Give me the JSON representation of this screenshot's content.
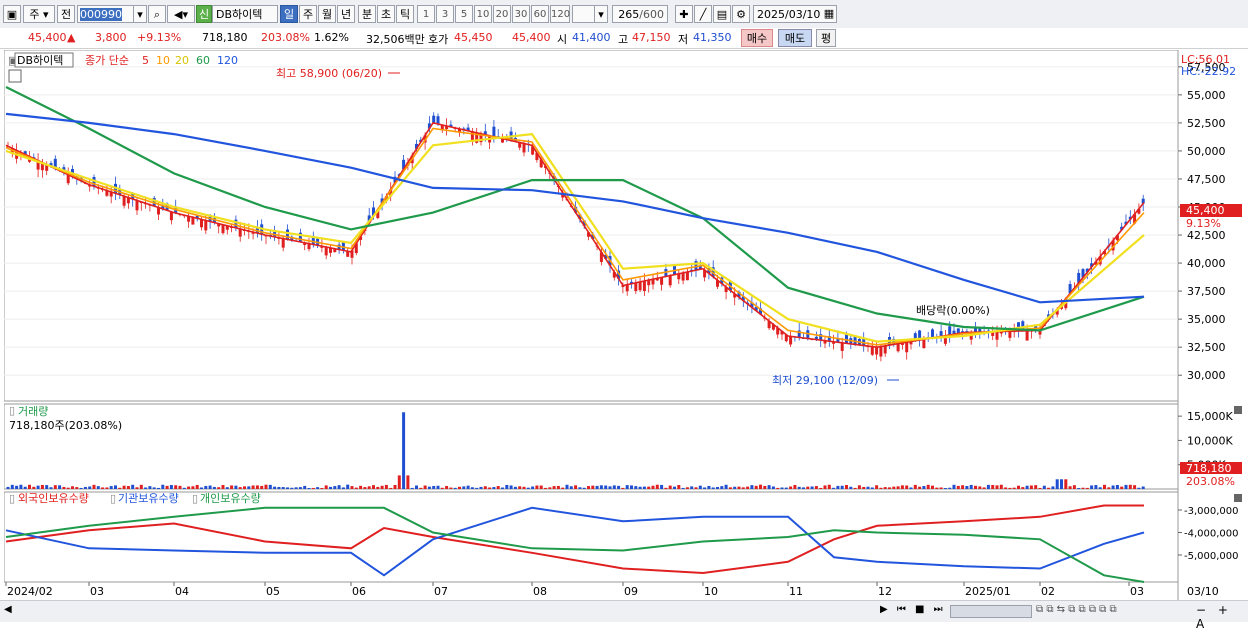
{
  "toolbar": {
    "tab_stock": "주",
    "tab_prev": "전",
    "code": "000990",
    "badge": "신",
    "name": "DB하이텍",
    "periods": [
      "일",
      "주",
      "월",
      "년",
      "분",
      "초",
      "틱"
    ],
    "selected_period": "일",
    "intervals": [
      "1",
      "3",
      "5",
      "10",
      "20",
      "30",
      "60",
      "120"
    ],
    "count": "265",
    "total": "/600",
    "date": "2025/03/10"
  },
  "info": {
    "price": "45,400",
    "arrow": "▲",
    "change": "3,800",
    "change_pct": "+9.13%",
    "volume": "718,180",
    "vol_ratio": "203.08%",
    "turnover": "1.62%",
    "amount": "32,506백만",
    "ask_label": "호가",
    "ask": "45,450",
    "bid": "45,400",
    "open_label": "시",
    "open": "41,400",
    "high_label": "고",
    "high": "47,150",
    "low_label": "저",
    "low": "41,350",
    "buy": "매수",
    "sell": "매도",
    "eval": "평"
  },
  "price_panel": {
    "legend_name": "DB하이텍",
    "legend_series": "종가 단순",
    "ma_periods": [
      "5",
      "10",
      "20",
      "60",
      "120"
    ],
    "ma_colors": [
      "#e02020",
      "#ff9900",
      "#f0e020",
      "#1e9a4a",
      "#2255dd"
    ],
    "lc": "LC:56.01",
    "hc": "HC:-22.92",
    "y_ticks": [
      "57,500",
      "55,000",
      "52,500",
      "50,000",
      "47,500",
      "45,000",
      "42,500",
      "40,000",
      "37,500",
      "35,000",
      "32,500",
      "30,000"
    ],
    "current_label": "45,400",
    "current_pct": "9.13%",
    "high_annotation": "최고 58,900 (06/20)",
    "low_annotation": "최저 29,100 (12/09)",
    "dividend_annotation": "배당락(0.00%)"
  },
  "volume_panel": {
    "title": "거래량",
    "value_text": "718,180주(203.08%)",
    "y_ticks": [
      "15,000K",
      "10,000K",
      "5,000K"
    ],
    "current_label": "718,180",
    "current_pct": "203.08%"
  },
  "holding_panel": {
    "legend": [
      "외국인보유수량",
      "기관보유수량",
      "개인보유수량"
    ],
    "legend_colors": [
      "#e02020",
      "#2255dd",
      "#1e9a4a"
    ],
    "y_ticks": [
      "-3,000,000",
      "-4,000,000",
      "-5,000,000"
    ]
  },
  "x_axis": {
    "labels": [
      "2024/02",
      "03",
      "04",
      "05",
      "06",
      "07",
      "08",
      "09",
      "10",
      "11",
      "12",
      "2025/01",
      "02",
      "03",
      "03/10"
    ]
  },
  "chart_data": {
    "type": "line",
    "x": [
      "2024/02",
      "03",
      "04",
      "05",
      "06",
      "07",
      "08",
      "09",
      "10",
      "11",
      "12",
      "2025/01",
      "02",
      "03"
    ],
    "series": [
      {
        "name": "5",
        "values": [
          50500,
          47000,
          44500,
          42500,
          41000,
          52500,
          50500,
          38000,
          39500,
          33500,
          32500,
          33800,
          34000,
          45400
        ]
      },
      {
        "name": "10",
        "values": [
          50300,
          47200,
          44800,
          42700,
          41300,
          52000,
          50800,
          38500,
          39800,
          34000,
          32700,
          33700,
          34200,
          44500
        ]
      },
      {
        "name": "20",
        "values": [
          50000,
          47500,
          45000,
          43000,
          41800,
          50500,
          51500,
          39500,
          40000,
          35000,
          33000,
          33500,
          34500,
          42500
        ]
      },
      {
        "name": "60",
        "values": [
          55700,
          52000,
          48000,
          45000,
          43000,
          44500,
          47400,
          47400,
          44000,
          37800,
          35500,
          34300,
          34000,
          37000
        ]
      },
      {
        "name": "120",
        "values": [
          53300,
          52500,
          51500,
          50000,
          48500,
          46700,
          46500,
          45500,
          44000,
          42700,
          41000,
          38500,
          36500,
          37000
        ]
      }
    ],
    "ylim": [
      27700,
      59000
    ]
  }
}
